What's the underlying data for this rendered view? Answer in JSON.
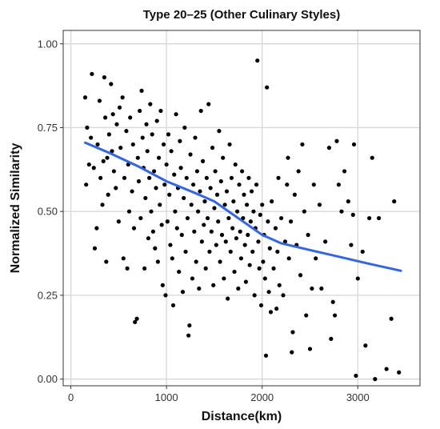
{
  "chart_data": {
    "type": "scatter",
    "title": "Type 20–25 (Other Culinary Styles)",
    "xlabel": "Distance(km)",
    "ylabel": "Normalized Similarity",
    "xlim": [
      -80,
      3650
    ],
    "ylim": [
      -0.02,
      1.04
    ],
    "x_ticks": [
      0,
      1000,
      2000,
      3000
    ],
    "x_tick_labels": [
      "0",
      "1000",
      "2000",
      "3000"
    ],
    "y_ticks": [
      0,
      0.25,
      0.5,
      0.75,
      1.0
    ],
    "y_tick_labels": [
      "0.00",
      "0.25",
      "0.50",
      "0.75",
      "1.00"
    ],
    "grid": true,
    "point_color": "#000000",
    "trend_color": "#3366e6",
    "trend": {
      "name": "smooth",
      "x": [
        150,
        400,
        700,
        1000,
        1300,
        1500,
        1700,
        1850,
        2000,
        2200,
        2500,
        2800,
        3100,
        3450
      ],
      "y": [
        0.705,
        0.675,
        0.635,
        0.59,
        0.555,
        0.53,
        0.49,
        0.46,
        0.43,
        0.405,
        0.385,
        0.365,
        0.345,
        0.323
      ]
    },
    "points": [
      [
        150,
        0.84
      ],
      [
        170,
        0.75
      ],
      [
        190,
        0.64
      ],
      [
        160,
        0.58
      ],
      [
        210,
        0.72
      ],
      [
        220,
        0.91
      ],
      [
        240,
        0.63
      ],
      [
        250,
        0.39
      ],
      [
        270,
        0.45
      ],
      [
        280,
        0.7
      ],
      [
        300,
        0.83
      ],
      [
        310,
        0.6
      ],
      [
        330,
        0.52
      ],
      [
        340,
        0.65
      ],
      [
        350,
        0.9
      ],
      [
        360,
        0.78
      ],
      [
        370,
        0.35
      ],
      [
        380,
        0.66
      ],
      [
        390,
        0.55
      ],
      [
        400,
        0.73
      ],
      [
        420,
        0.88
      ],
      [
        430,
        0.68
      ],
      [
        440,
        0.79
      ],
      [
        450,
        0.62
      ],
      [
        470,
        0.57
      ],
      [
        480,
        0.76
      ],
      [
        500,
        0.47
      ],
      [
        510,
        0.81
      ],
      [
        520,
        0.69
      ],
      [
        540,
        0.84
      ],
      [
        550,
        0.36
      ],
      [
        560,
        0.6
      ],
      [
        580,
        0.74
      ],
      [
        590,
        0.33
      ],
      [
        600,
        0.64
      ],
      [
        610,
        0.5
      ],
      [
        620,
        0.78
      ],
      [
        640,
        0.56
      ],
      [
        650,
        0.7
      ],
      [
        660,
        0.45
      ],
      [
        670,
        0.17
      ],
      [
        690,
        0.18
      ],
      [
        700,
        0.66
      ],
      [
        710,
        0.59
      ],
      [
        720,
        0.8
      ],
      [
        730,
        0.48
      ],
      [
        740,
        0.86
      ],
      [
        750,
        0.72
      ],
      [
        760,
        0.63
      ],
      [
        770,
        0.33
      ],
      [
        780,
        0.54
      ],
      [
        790,
        0.76
      ],
      [
        800,
        0.68
      ],
      [
        810,
        0.42
      ],
      [
        820,
        0.6
      ],
      [
        830,
        0.82
      ],
      [
        840,
        0.5
      ],
      [
        850,
        0.73
      ],
      [
        860,
        0.44
      ],
      [
        870,
        0.62
      ],
      [
        880,
        0.39
      ],
      [
        890,
        0.57
      ],
      [
        900,
        0.77
      ],
      [
        910,
        0.35
      ],
      [
        920,
        0.66
      ],
      [
        930,
        0.52
      ],
      [
        940,
        0.8
      ],
      [
        950,
        0.46
      ],
      [
        960,
        0.28
      ],
      [
        970,
        0.7
      ],
      [
        980,
        0.58
      ],
      [
        990,
        0.25
      ],
      [
        1000,
        0.64
      ],
      [
        1010,
        0.47
      ],
      [
        1020,
        0.73
      ],
      [
        1030,
        0.55
      ],
      [
        1040,
        0.4
      ],
      [
        1050,
        0.68
      ],
      [
        1060,
        0.36
      ],
      [
        1070,
        0.22
      ],
      [
        1080,
        0.61
      ],
      [
        1090,
        0.5
      ],
      [
        1100,
        0.79
      ],
      [
        1110,
        0.45
      ],
      [
        1120,
        0.57
      ],
      [
        1130,
        0.32
      ],
      [
        1140,
        0.71
      ],
      [
        1150,
        0.63
      ],
      [
        1160,
        0.43
      ],
      [
        1170,
        0.26
      ],
      [
        1180,
        0.54
      ],
      [
        1190,
        0.75
      ],
      [
        1200,
        0.38
      ],
      [
        1210,
        0.6
      ],
      [
        1220,
        0.48
      ],
      [
        1230,
        0.13
      ],
      [
        1240,
        0.16
      ],
      [
        1250,
        0.67
      ],
      [
        1260,
        0.52
      ],
      [
        1270,
        0.3
      ],
      [
        1280,
        0.58
      ],
      [
        1290,
        0.44
      ],
      [
        1300,
        0.72
      ],
      [
        1310,
        0.35
      ],
      [
        1320,
        0.62
      ],
      [
        1330,
        0.5
      ],
      [
        1340,
        0.27
      ],
      [
        1350,
        0.56
      ],
      [
        1360,
        0.8
      ],
      [
        1370,
        0.41
      ],
      [
        1380,
        0.65
      ],
      [
        1390,
        0.46
      ],
      [
        1400,
        0.53
      ],
      [
        1410,
        0.33
      ],
      [
        1420,
        0.6
      ],
      [
        1430,
        0.48
      ],
      [
        1440,
        0.82
      ],
      [
        1450,
        0.38
      ],
      [
        1460,
        0.57
      ],
      [
        1470,
        0.44
      ],
      [
        1480,
        0.69
      ],
      [
        1490,
        0.28
      ],
      [
        1500,
        0.51
      ],
      [
        1510,
        0.62
      ],
      [
        1520,
        0.4
      ],
      [
        1530,
        0.55
      ],
      [
        1540,
        0.47
      ],
      [
        1550,
        0.74
      ],
      [
        1560,
        0.35
      ],
      [
        1570,
        0.59
      ],
      [
        1580,
        0.43
      ],
      [
        1590,
        0.66
      ],
      [
        1600,
        0.3
      ],
      [
        1610,
        0.52
      ],
      [
        1620,
        0.41
      ],
      [
        1630,
        0.56
      ],
      [
        1640,
        0.24
      ],
      [
        1650,
        0.48
      ],
      [
        1660,
        0.7
      ],
      [
        1670,
        0.38
      ],
      [
        1680,
        0.6
      ],
      [
        1690,
        0.45
      ],
      [
        1700,
        0.53
      ],
      [
        1710,
        0.32
      ],
      [
        1720,
        0.64
      ],
      [
        1730,
        0.42
      ],
      [
        1740,
        0.5
      ],
      [
        1750,
        0.27
      ],
      [
        1760,
        0.58
      ],
      [
        1770,
        0.44
      ],
      [
        1780,
        0.36
      ],
      [
        1790,
        0.62
      ],
      [
        1800,
        0.48
      ],
      [
        1810,
        0.55
      ],
      [
        1820,
        0.4
      ],
      [
        1830,
        0.29
      ],
      [
        1840,
        0.52
      ],
      [
        1850,
        0.43
      ],
      [
        1860,
        0.6
      ],
      [
        1870,
        0.34
      ],
      [
        1880,
        0.47
      ],
      [
        1890,
        0.56
      ],
      [
        1900,
        0.38
      ],
      [
        1910,
        0.5
      ],
      [
        1920,
        0.25
      ],
      [
        1930,
        0.45
      ],
      [
        1940,
        0.58
      ],
      [
        1950,
        0.95
      ],
      [
        1960,
        0.41
      ],
      [
        1970,
        0.33
      ],
      [
        1980,
        0.49
      ],
      [
        1990,
        0.22
      ],
      [
        2000,
        0.52
      ],
      [
        2010,
        0.35
      ],
      [
        2020,
        0.43
      ],
      [
        2030,
        0.3
      ],
      [
        2040,
        0.07
      ],
      [
        2050,
        0.87
      ],
      [
        2060,
        0.47
      ],
      [
        2070,
        0.26
      ],
      [
        2080,
        0.39
      ],
      [
        2090,
        0.2
      ],
      [
        2100,
        0.53
      ],
      [
        2120,
        0.33
      ],
      [
        2140,
        0.45
      ],
      [
        2150,
        0.21
      ],
      [
        2160,
        0.38
      ],
      [
        2170,
        0.6
      ],
      [
        2180,
        0.28
      ],
      [
        2200,
        0.48
      ],
      [
        2220,
        0.25
      ],
      [
        2240,
        0.41
      ],
      [
        2260,
        0.58
      ],
      [
        2270,
        0.66
      ],
      [
        2280,
        0.36
      ],
      [
        2300,
        0.47
      ],
      [
        2310,
        0.08
      ],
      [
        2320,
        0.14
      ],
      [
        2340,
        0.55
      ],
      [
        2360,
        0.4
      ],
      [
        2380,
        0.62
      ],
      [
        2400,
        0.31
      ],
      [
        2420,
        0.7
      ],
      [
        2440,
        0.5
      ],
      [
        2460,
        0.19
      ],
      [
        2480,
        0.43
      ],
      [
        2500,
        0.09
      ],
      [
        2520,
        0.27
      ],
      [
        2540,
        0.58
      ],
      [
        2560,
        0.36
      ],
      [
        2600,
        0.52
      ],
      [
        2620,
        0.27
      ],
      [
        2660,
        0.41
      ],
      [
        2700,
        0.69
      ],
      [
        2720,
        0.12
      ],
      [
        2740,
        0.23
      ],
      [
        2760,
        0.19
      ],
      [
        2780,
        0.71
      ],
      [
        2800,
        0.58
      ],
      [
        2830,
        0.5
      ],
      [
        2860,
        0.62
      ],
      [
        2900,
        0.53
      ],
      [
        2930,
        0.4
      ],
      [
        2950,
        0.49
      ],
      [
        2960,
        0.7
      ],
      [
        2980,
        0.01
      ],
      [
        3000,
        0.3
      ],
      [
        3050,
        0.38
      ],
      [
        3080,
        0.1
      ],
      [
        3120,
        0.48
      ],
      [
        3150,
        0.66
      ],
      [
        3180,
        0.0
      ],
      [
        3220,
        0.48
      ],
      [
        3300,
        0.03
      ],
      [
        3350,
        0.18
      ],
      [
        3380,
        0.53
      ],
      [
        3430,
        0.02
      ]
    ]
  }
}
